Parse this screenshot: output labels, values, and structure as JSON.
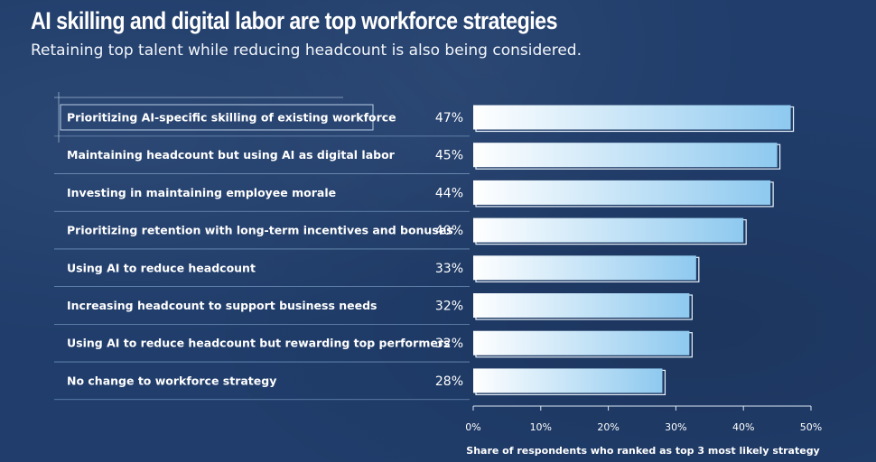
{
  "header": {
    "title": "AI skilling and digital labor are top workforce strategies",
    "subtitle": "Retaining top talent while reducing headcount is also being considered."
  },
  "colors": {
    "background": "#203d6b",
    "bar_light": "#ffffff",
    "bar_dark": "#8ec9ef",
    "divider": "#8fb4d9"
  },
  "chart_data": {
    "type": "bar",
    "orientation": "horizontal",
    "categories": [
      "Prioritizing AI-specific skilling of existing workforce",
      "Maintaining headcount but using AI as digital labor",
      "Investing in maintaining employee morale",
      "Prioritizing retention with long-term incentives and bonuses",
      "Using AI to reduce headcount",
      "Increasing headcount to support business needs",
      "Using AI to reduce headcount but rewarding top performers",
      "No change to workforce strategy"
    ],
    "values": [
      47,
      45,
      44,
      40,
      33,
      32,
      32,
      28
    ],
    "value_labels": [
      "47%",
      "45%",
      "44%",
      "40%",
      "33%",
      "32%",
      "32%",
      "28%"
    ],
    "xlim": [
      0,
      50
    ],
    "ticks": [
      0,
      10,
      20,
      30,
      40,
      50
    ],
    "tick_labels": [
      "0%",
      "10%",
      "20%",
      "30%",
      "40%",
      "50%"
    ],
    "xlabel": "Share of respondents who ranked as top 3 most likely strategy",
    "highlighted_index": 0,
    "grid": false
  }
}
